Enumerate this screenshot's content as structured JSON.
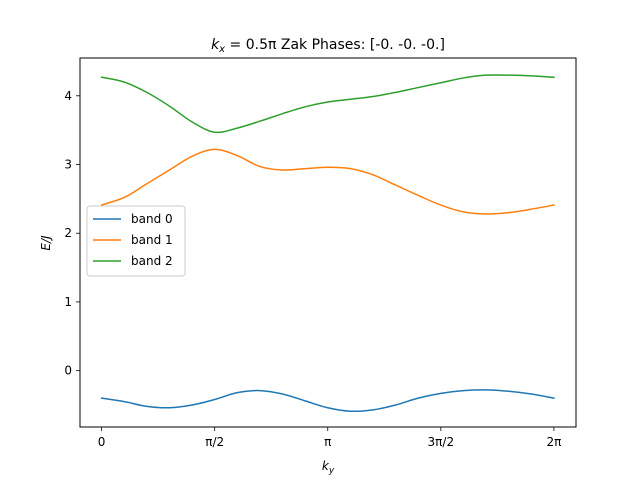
{
  "chart_data": {
    "type": "line",
    "title": {
      "prefix_var": "k",
      "prefix_sub": "x",
      "prefix_rest": " = 0.5π",
      "suffix": " Zak Phases: [-0. -0. -0.]"
    },
    "xlabel": {
      "var": "k",
      "sub": "y"
    },
    "ylabel": "E/J",
    "xlim": [
      -0.3,
      6.59
    ],
    "ylim": [
      -0.82,
      4.55
    ],
    "xticks": [
      {
        "value": 0,
        "label": "0"
      },
      {
        "value": 1.5708,
        "label": "π/2"
      },
      {
        "value": 3.1416,
        "label": "π"
      },
      {
        "value": 4.7124,
        "label": "3π/2"
      },
      {
        "value": 6.2832,
        "label": "2π"
      }
    ],
    "yticks": [
      {
        "value": 0,
        "label": "0"
      },
      {
        "value": 1,
        "label": "1"
      },
      {
        "value": 2,
        "label": "2"
      },
      {
        "value": 3,
        "label": "3"
      },
      {
        "value": 4,
        "label": "4"
      }
    ],
    "legend_position": "center-left",
    "grid": false,
    "x": [
      0,
      0.3142,
      0.6283,
      0.9425,
      1.2566,
      1.5708,
      1.885,
      2.1991,
      2.5133,
      2.8274,
      3.1416,
      3.4558,
      3.7699,
      4.0841,
      4.3982,
      4.7124,
      5.0265,
      5.3407,
      5.6549,
      5.969,
      6.2832
    ],
    "series": [
      {
        "name": "band 0",
        "color": "#1f77b4",
        "values": [
          -0.4,
          -0.45,
          -0.52,
          -0.54,
          -0.5,
          -0.42,
          -0.32,
          -0.29,
          -0.34,
          -0.44,
          -0.54,
          -0.59,
          -0.57,
          -0.5,
          -0.4,
          -0.33,
          -0.29,
          -0.28,
          -0.3,
          -0.34,
          -0.4
        ]
      },
      {
        "name": "band 1",
        "color": "#ff7f0e",
        "values": [
          2.41,
          2.52,
          2.72,
          2.92,
          3.12,
          3.22,
          3.13,
          2.97,
          2.92,
          2.94,
          2.96,
          2.94,
          2.85,
          2.7,
          2.55,
          2.41,
          2.31,
          2.28,
          2.3,
          2.35,
          2.41
        ]
      },
      {
        "name": "band 2",
        "color": "#2ca02c",
        "values": [
          4.27,
          4.2,
          4.05,
          3.85,
          3.62,
          3.47,
          3.53,
          3.63,
          3.74,
          3.84,
          3.91,
          3.95,
          3.99,
          4.05,
          4.12,
          4.19,
          4.26,
          4.3,
          4.3,
          4.29,
          4.27
        ]
      }
    ]
  }
}
